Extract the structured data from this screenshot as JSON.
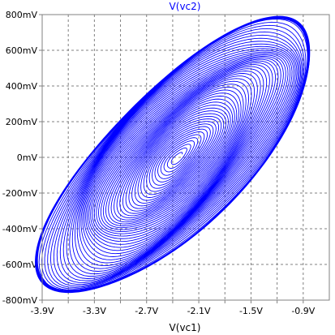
{
  "chart_data": {
    "type": "line",
    "title": "V(vc2)",
    "xlabel": "V(vc1)",
    "ylabel": "",
    "xlim": [
      -3.9,
      -0.6
    ],
    "ylim": [
      -800,
      800
    ],
    "x_unit": "V",
    "y_unit": "mV",
    "x_ticks": [
      -3.9,
      -3.6,
      -3.3,
      -3.0,
      -2.7,
      -2.4,
      -2.1,
      -1.8,
      -1.5,
      -1.2,
      -0.9
    ],
    "x_tick_labels": [
      "-3.9V",
      "",
      "-3.3V",
      "",
      "-2.7V",
      "",
      "-2.1V",
      "",
      "-1.5V",
      "",
      "-0.9V"
    ],
    "y_ticks": [
      800,
      600,
      400,
      200,
      0,
      -200,
      -400,
      -600,
      -800
    ],
    "y_tick_labels": [
      "800mV",
      "600mV",
      "400mV",
      "200mV",
      "0mV",
      "-200mV",
      "-400mV",
      "-600mV",
      "-800mV"
    ],
    "grid": true,
    "grid_style": "dashed",
    "series": [
      {
        "color": "#0000ff",
        "shape": "growing elliptical spiral (phase portrait)",
        "center": [
          -2.34,
          0
        ],
        "x_extent": [
          -3.84,
          -0.69
        ],
        "y_extent": [
          -780,
          760
        ],
        "rings": 52
      }
    ]
  }
}
